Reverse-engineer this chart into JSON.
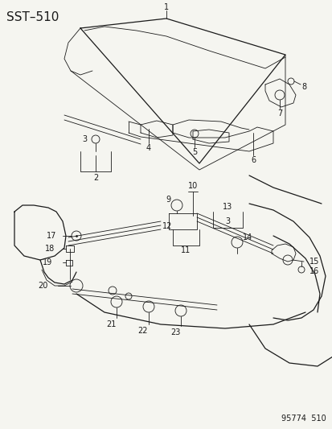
{
  "title": "SST–510",
  "footer": "95774  510",
  "bg_color": "#f5f5f0",
  "line_color": "#1a1a1a",
  "title_fontsize": 11,
  "label_fontsize": 7,
  "footer_fontsize": 7
}
